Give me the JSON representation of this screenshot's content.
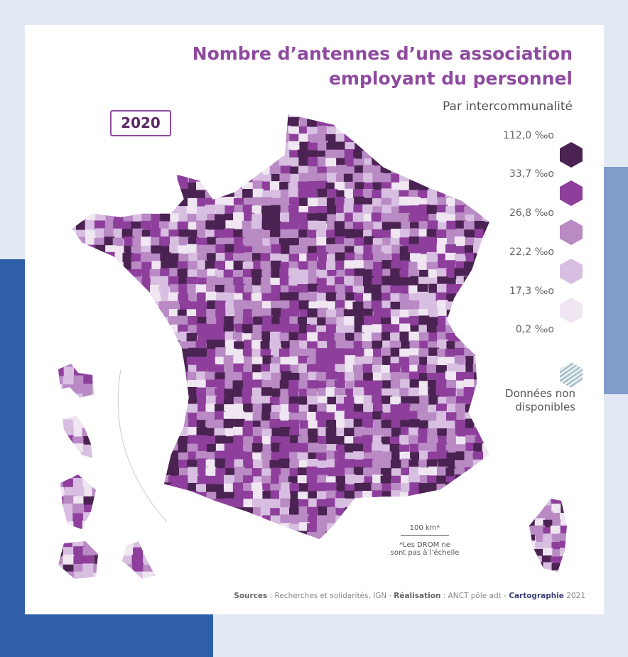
{
  "title": {
    "line1": "Nombre d’antennes d’une association",
    "line2": "employant du personnel"
  },
  "subtitle": "Par intercommunalité",
  "year": "2020",
  "legend": {
    "classes": [
      {
        "label": "112,0 ‰o",
        "color": "#4b2352"
      },
      {
        "label": "33,7 ‰o",
        "color": "#8e3f9c"
      },
      {
        "label": "26,8 ‰o",
        "color": "#b98ac4"
      },
      {
        "label": "22,2 ‰o",
        "color": "#d8bfe1"
      },
      {
        "label": "17,3 ‰o",
        "color": "#efe6f2"
      },
      {
        "label": "0,2 ‰o",
        "color": null
      }
    ],
    "na_line1": "Données non",
    "na_line2": "disponibles",
    "na_color": "#9fb9c4"
  },
  "scale": {
    "label": "100 km*",
    "note1": "*Les DROM ne",
    "note2": "sont pas à l’échelle"
  },
  "sources": {
    "sources_label": "Sources",
    "sources_text": " : Recherches et solidarités, IGN · ",
    "realisation_label": "Réalisation",
    "realisation_text": " : ANCT pôle adt - ",
    "carto": "Cartographie",
    "year": " 2021"
  }
}
